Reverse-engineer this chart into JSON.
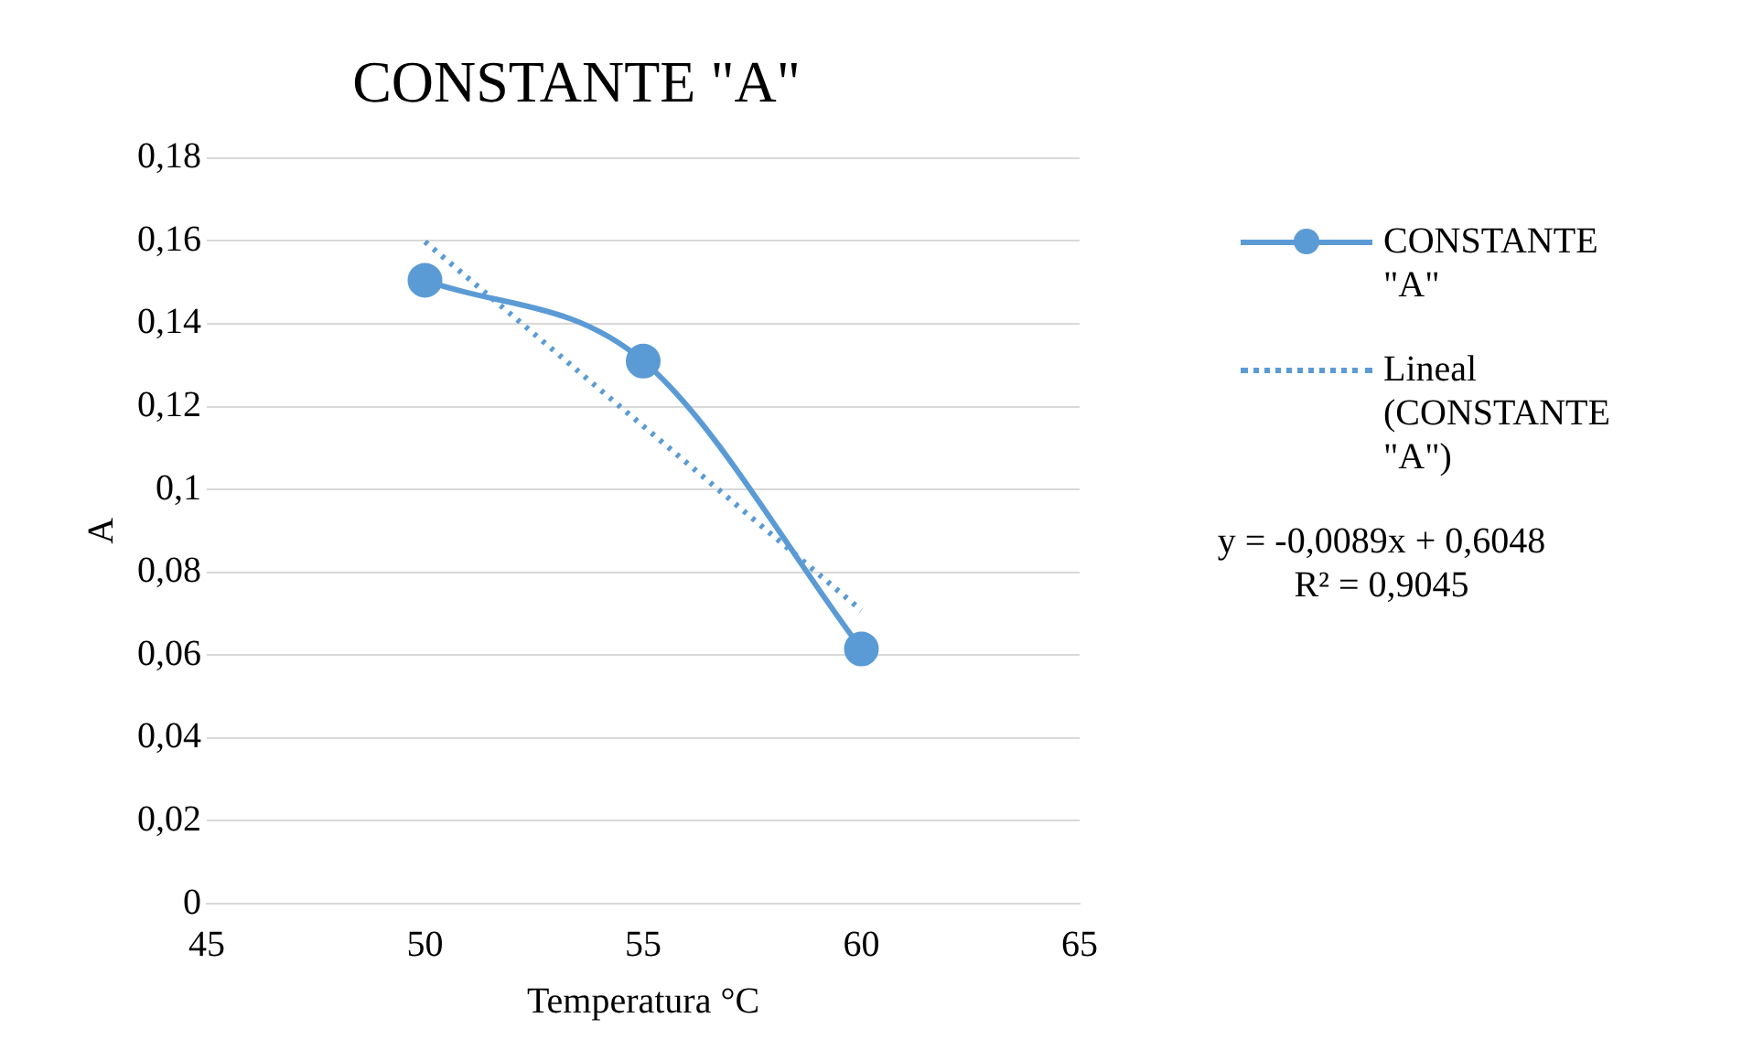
{
  "chart_data": {
    "type": "line",
    "title": "CONSTANTE \"A\"",
    "xlabel": "Temperatura °C",
    "ylabel": "A",
    "x": [
      50,
      55,
      60
    ],
    "series": [
      {
        "name": "CONSTANTE \"A\"",
        "color": "#5b9bd5",
        "values": [
          0.1505,
          0.131,
          0.0615
        ],
        "marker": "circle",
        "line_style": "solid"
      },
      {
        "name": "Lineal (CONSTANTE \"A\")",
        "type": "line",
        "color": "#5b9bd5",
        "x": [
          50,
          60
        ],
        "values": [
          0.1598,
          0.0708
        ],
        "marker": "none",
        "line_style": "dotted"
      }
    ],
    "xlim": [
      45,
      65
    ],
    "xticks": [
      45,
      50,
      55,
      60,
      65
    ],
    "ylim": [
      0,
      0.18
    ],
    "yticks": [
      0,
      {
        "value": 0.02,
        "label": "0,02"
      },
      {
        "value": 0.04,
        "label": "0,04"
      },
      {
        "value": 0.06,
        "label": "0,06"
      },
      {
        "value": 0.08,
        "label": "0,08"
      },
      {
        "value": 0.1,
        "label": "0,1"
      },
      {
        "value": 0.12,
        "label": "0,12"
      },
      {
        "value": 0.14,
        "label": "0,14"
      },
      {
        "value": 0.16,
        "label": "0,16"
      },
      {
        "value": 0.18,
        "label": "0,18"
      }
    ],
    "grid": "y",
    "legend": "right",
    "annotations": [
      "y = -0,0089x + 0,6048\nR² = 0,9045"
    ]
  }
}
